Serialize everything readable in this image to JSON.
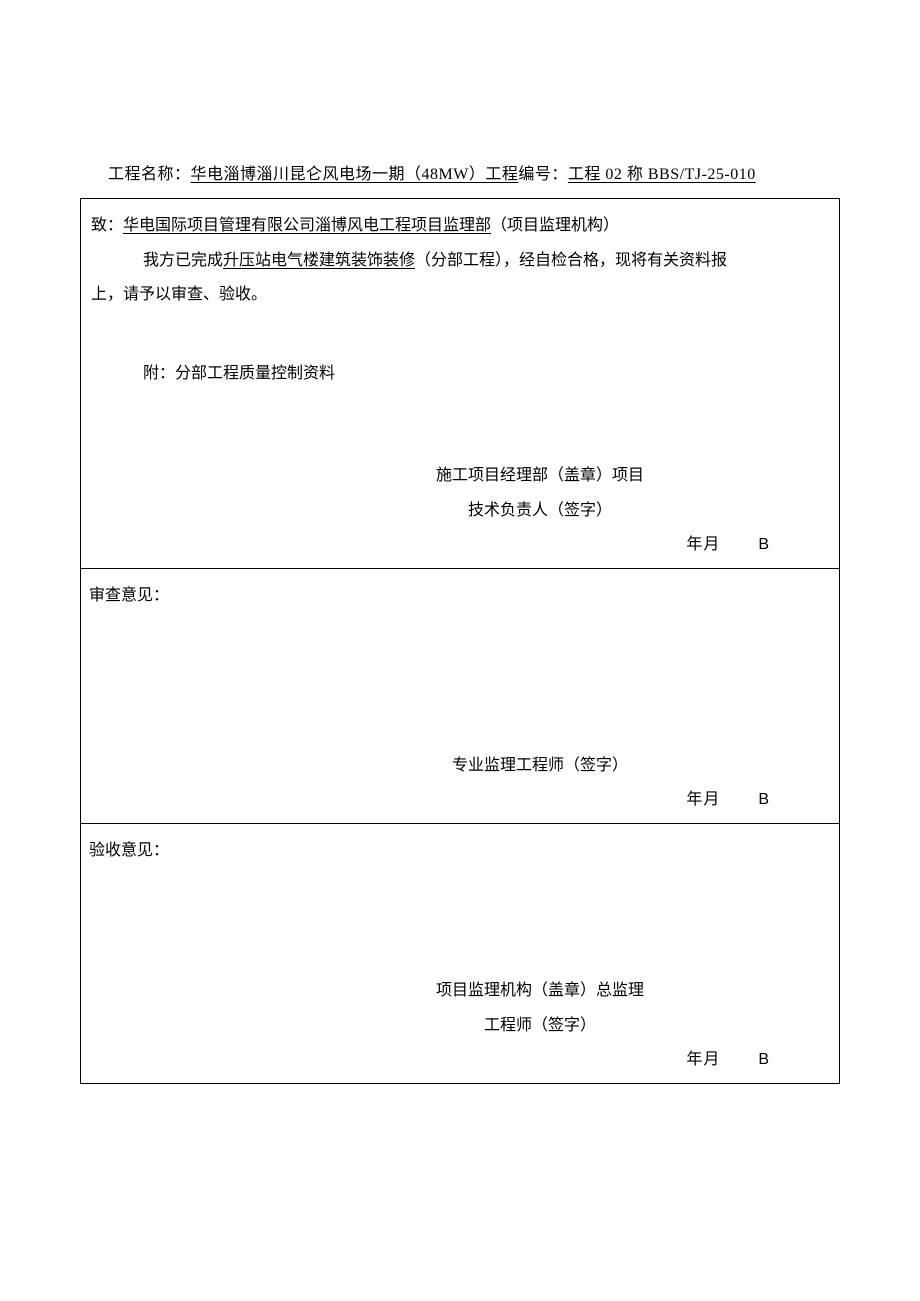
{
  "header": {
    "project_label": "工程名称：",
    "project_name": "华电淄博淄川昆仑风电场一期（48MW）工程",
    "doc_label": "编号：",
    "doc_number": "工程 02 称 BBS/TJ-25-010"
  },
  "section1": {
    "to_label": "致：",
    "recipient": "华电国际项目管理有限公司淄博风电工程项目监理部",
    "recipient_suffix": "（项目监理机构）",
    "body_prefix": "我方已完成",
    "subproject": "升压站电气楼建筑装饰装修",
    "body_mid": "（分部工程），经自检合格，现将有关资料报",
    "body_cont": "上，请予以审查、验收。",
    "attachment": "附：分部工程质量控制资料",
    "sig_line1": "施工项目经理部（盖章）项目",
    "sig_line2": "技术负责人（签字）",
    "date_label": "年月",
    "day_marker": "B"
  },
  "section2": {
    "label": "审查意见：",
    "sig_line": "专业监理工程师（签字）",
    "date_label": "年月",
    "day_marker": "B"
  },
  "section3": {
    "label": "验收意见：",
    "sig_line1": "项目监理机构（盖章）总监理",
    "sig_line2": "工程师（签字）",
    "date_label": "年月",
    "day_marker": "B"
  },
  "colors": {
    "text": "#000000",
    "background": "#ffffff",
    "border": "#000000"
  },
  "typography": {
    "font_family": "SimSun",
    "base_size_pt": 12,
    "line_height": 1.9
  }
}
